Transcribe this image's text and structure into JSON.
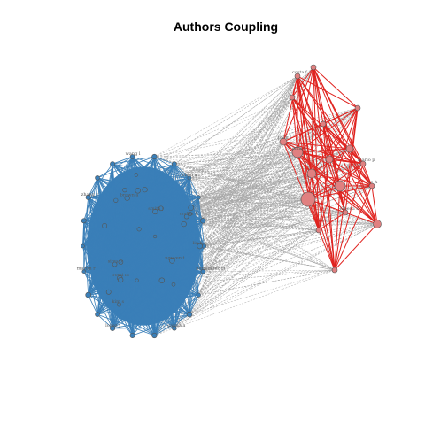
{
  "title": "Authors Coupling",
  "colors": {
    "blue_cluster": "#3a7fb8",
    "red_cluster": "#e0231f",
    "between_edges": "#a8a8a8",
    "blue_node_fill": "#3a7fb8",
    "red_node_fill": "#e08080",
    "node_stroke": "#555555"
  },
  "graph": {
    "type": "network",
    "clusters": [
      {
        "name": "blue",
        "node_count": 48,
        "labels": [
          "hernandez m",
          "garcia a",
          "lopez j",
          "martin r",
          "zhang y",
          "wang l",
          "chen x",
          "liu h",
          "kim s",
          "smith j",
          "brown a",
          "muller k",
          "rossi m",
          "silva p",
          "nguyen t"
        ]
      },
      {
        "name": "red",
        "node_count": 18,
        "labels": [
          "costa f",
          "lee h",
          "park j",
          "ortiz c",
          "mario p",
          "alberti s"
        ]
      }
    ]
  }
}
